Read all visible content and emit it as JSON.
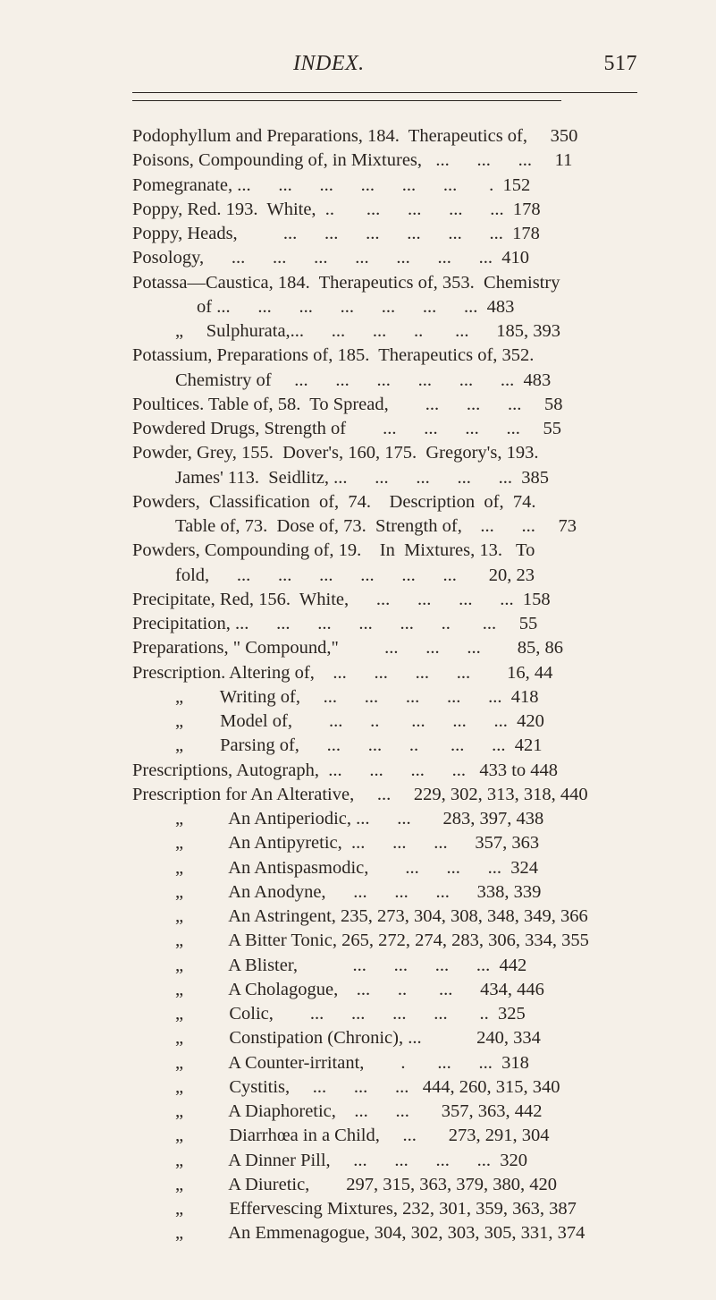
{
  "page": {
    "header_title": "INDEX.",
    "page_number": "517"
  },
  "lines": [
    {
      "t": "Podophyllum and Preparations, 184.  Therapeutics of,     350",
      "i": 0
    },
    {
      "t": "Poisons, Compounding of, in Mixtures,   ...      ...      ...     11",
      "i": 0
    },
    {
      "t": "Pomegranate, ...      ...      ...      ...      ...      ...       .  152",
      "i": 0
    },
    {
      "t": "Poppy, Red. 193.  White,  ..       ...      ...      ...      ...  178",
      "i": 0
    },
    {
      "t": "Poppy, Heads,          ...      ...      ...      ...      ...      ...  178",
      "i": 0
    },
    {
      "t": "Posology,      ...      ...      ...      ...      ...      ...      ...  410",
      "i": 0
    },
    {
      "t": "Potassa—Caustica, 184.  Therapeutics of, 353.  Chemistry",
      "i": 0
    },
    {
      "t": "of ...      ...      ...      ...      ...      ...      ...  483",
      "i": 2
    },
    {
      "t": "„     Sulphurata,...      ...      ...      ..       ...      185, 393",
      "i": 1
    },
    {
      "t": "Potassium, Preparations of, 185.  Therapeutics of, 352.",
      "i": 0
    },
    {
      "t": "Chemistry of     ...      ...      ...      ...      ...      ...  483",
      "i": 1
    },
    {
      "t": "Poultices. Table of, 58.  To Spread,        ...      ...      ...     58",
      "i": 0
    },
    {
      "t": "Powdered Drugs, Strength of        ...      ...      ...      ...     55",
      "i": 0
    },
    {
      "t": "Powder, Grey, 155.  Dover's, 160, 175.  Gregory's, 193.",
      "i": 0
    },
    {
      "t": "James' 113.  Seidlitz, ...      ...      ...      ...      ...  385",
      "i": 1
    },
    {
      "t": "Powders,  Classification  of,  74.    Description  of,  74.",
      "i": 0
    },
    {
      "t": "Table of, 73.  Dose of, 73.  Strength of,    ...      ...     73",
      "i": 1
    },
    {
      "t": "Powders, Compounding of, 19.    In  Mixtures, 13.   To",
      "i": 0
    },
    {
      "t": "fold,      ...      ...      ...      ...      ...      ...       20, 23",
      "i": 1
    },
    {
      "t": "Precipitate, Red, 156.  White,      ...      ...      ...      ...  158",
      "i": 0
    },
    {
      "t": "Precipitation, ...      ...      ...      ...      ...      ..       ...     55",
      "i": 0
    },
    {
      "t": "Preparations, \" Compound,\"          ...      ...      ...        85, 86",
      "i": 0
    },
    {
      "t": "Prescription. Altering of,    ...      ...      ...      ...        16, 44",
      "i": 0
    },
    {
      "t": "„        Writing of,     ...      ...      ...      ...      ...  418",
      "i": 1
    },
    {
      "t": "„        Model of,        ...      ..       ...      ...      ...  420",
      "i": 1
    },
    {
      "t": "„        Parsing of,      ...      ...      ..       ...      ...  421",
      "i": 1
    },
    {
      "t": "Prescriptions, Autograph,  ...      ...      ...      ...   433 to 448",
      "i": 0
    },
    {
      "t": "Prescription for An Alterative,     ...     229, 302, 313, 318, 440",
      "i": 0
    },
    {
      "t": "„          An Antiperiodic, ...      ...       283, 397, 438",
      "i": 1
    },
    {
      "t": "„          An Antipyretic,  ...      ...      ...      357, 363",
      "i": 1
    },
    {
      "t": "„          An Antispasmodic,        ...      ...      ...  324",
      "i": 1
    },
    {
      "t": "„          An Anodyne,      ...      ...      ...      338, 339",
      "i": 1
    },
    {
      "t": "„          An Astringent, 235, 273, 304, 308, 348, 349, 366",
      "i": 1
    },
    {
      "t": "„          A Bitter Tonic, 265, 272, 274, 283, 306, 334, 355",
      "i": 1
    },
    {
      "t": "„          A Blister,            ...      ...      ...      ...  442",
      "i": 1
    },
    {
      "t": "„          A Cholagogue,    ...      ..       ...      434, 446",
      "i": 1
    },
    {
      "t": "„          Colic,        ...      ...      ...      ...       ..  325",
      "i": 1
    },
    {
      "t": "„          Constipation (Chronic), ...            240, 334",
      "i": 1
    },
    {
      "t": "„          A Counter-irritant,        .       ...      ...  318",
      "i": 1
    },
    {
      "t": "„          Cystitis,     ...      ...      ...   444, 260, 315, 340",
      "i": 1
    },
    {
      "t": "„          A Diaphoretic,    ...      ...       357, 363, 442",
      "i": 1
    },
    {
      "t": "„          Diarrhœa in a Child,     ...       273, 291, 304",
      "i": 1
    },
    {
      "t": "„          A Dinner Pill,     ...      ...      ...      ...  320",
      "i": 1
    },
    {
      "t": "„          A Diuretic,        297, 315, 363, 379, 380, 420",
      "i": 1
    },
    {
      "t": "„          Effervescing Mixtures, 232, 301, 359, 363, 387",
      "i": 1
    },
    {
      "t": "„          An Emmenagogue, 304, 302, 303, 305, 331, 374",
      "i": 1
    }
  ]
}
